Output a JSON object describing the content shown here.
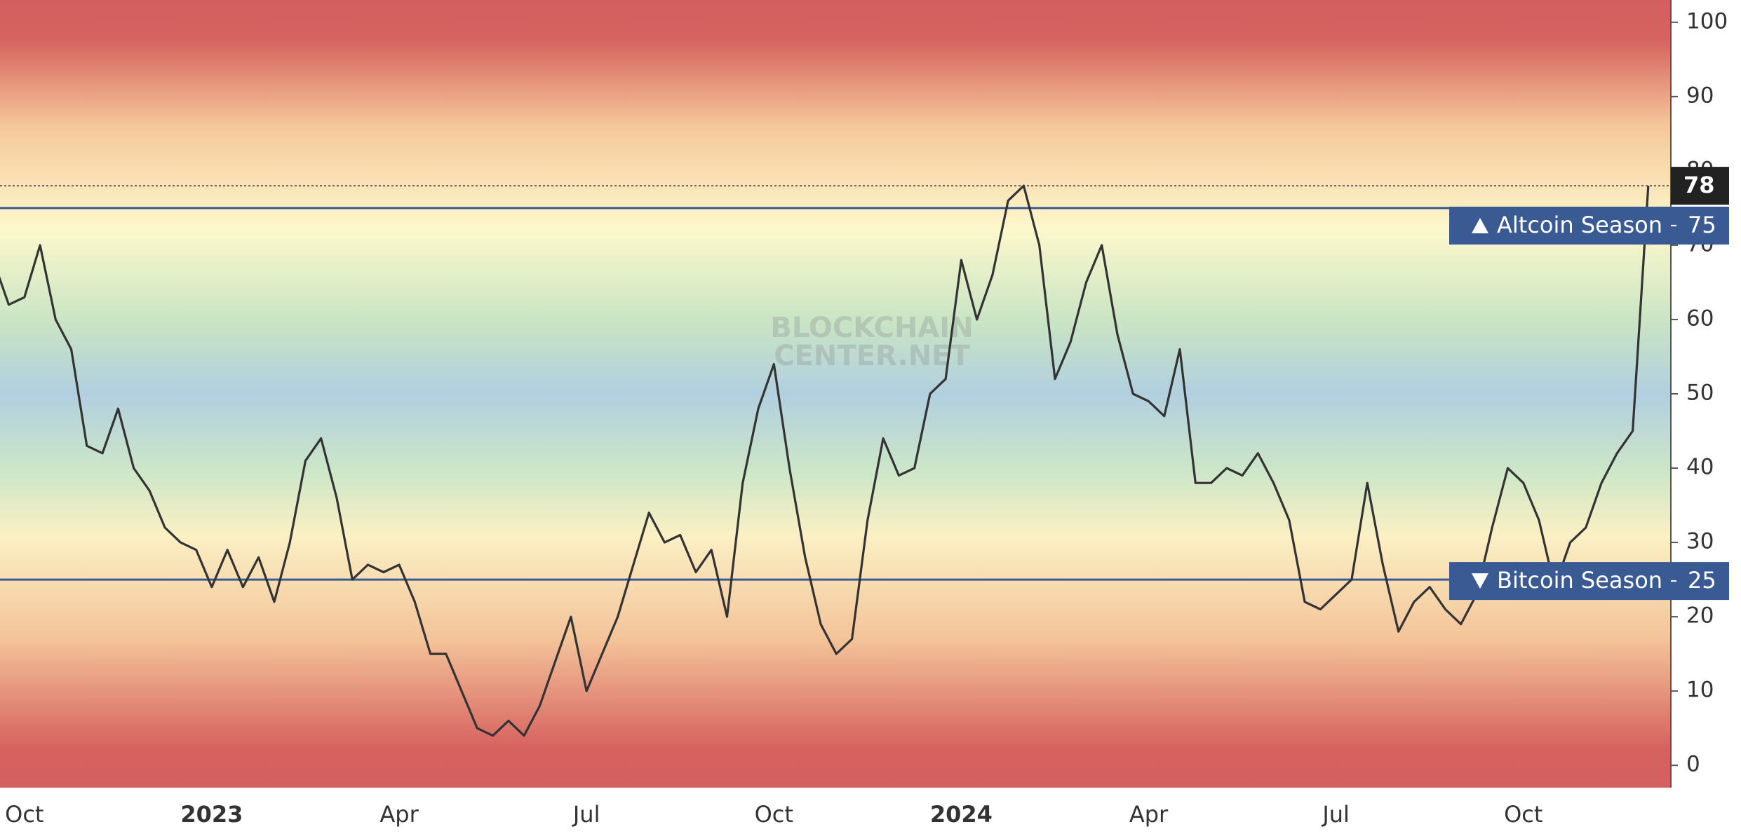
{
  "chart_data": {
    "type": "line",
    "categories": [
      null,
      null,
      "Oct",
      null,
      null,
      null,
      null,
      null,
      null,
      null,
      null,
      null,
      null,
      null,
      "2023",
      null,
      null,
      null,
      null,
      null,
      null,
      null,
      null,
      null,
      null,
      null,
      "Apr",
      null,
      null,
      null,
      null,
      null,
      null,
      null,
      null,
      null,
      null,
      null,
      "Jul",
      null,
      null,
      null,
      null,
      null,
      null,
      null,
      null,
      null,
      null,
      null,
      "Oct",
      null,
      null,
      null,
      null,
      null,
      null,
      null,
      null,
      null,
      null,
      null,
      "2024",
      null,
      null,
      null,
      null,
      null,
      null,
      null,
      null,
      null,
      null,
      null,
      "Apr",
      null,
      null,
      null,
      null,
      null,
      null,
      null,
      null,
      null,
      null,
      null,
      "Jul",
      null,
      null,
      null,
      null,
      null,
      null,
      null,
      null,
      null,
      null,
      null,
      "Oct",
      null,
      null,
      null,
      null,
      null,
      null,
      null,
      null
    ],
    "values": [
      68,
      62,
      63,
      70,
      60,
      56,
      43,
      42,
      48,
      40,
      37,
      32,
      30,
      29,
      24,
      29,
      24,
      28,
      22,
      30,
      41,
      44,
      36,
      25,
      27,
      26,
      27,
      22,
      15,
      15,
      10,
      5,
      4,
      6,
      4,
      8,
      14,
      20,
      10,
      15,
      20,
      27,
      34,
      30,
      31,
      26,
      29,
      20,
      38,
      48,
      54,
      40,
      28,
      19,
      15,
      17,
      33,
      44,
      39,
      40,
      50,
      52,
      68,
      60,
      66,
      76,
      78,
      70,
      52,
      57,
      65,
      70,
      58,
      50,
      49,
      47,
      56,
      38,
      38,
      40,
      39,
      42,
      38,
      33,
      22,
      21,
      23,
      25,
      38,
      27,
      18,
      22,
      24,
      21,
      19,
      23,
      32,
      40,
      38,
      33,
      24,
      30,
      32,
      38,
      42,
      45,
      78
    ],
    "color": "#333333",
    "ylim": [
      -3,
      103
    ],
    "yticks": [
      0,
      10,
      20,
      30,
      40,
      50,
      60,
      70,
      80,
      90,
      100
    ],
    "reference_lines": [
      {
        "name": "Altcoin Season",
        "value": 75,
        "color": "#3a5a94"
      },
      {
        "name": "Bitcoin Season",
        "value": 25,
        "color": "#3a5a94"
      }
    ],
    "watermark": [
      "BLOCKCHAIN",
      "CENTER.NET"
    ]
  }
}
